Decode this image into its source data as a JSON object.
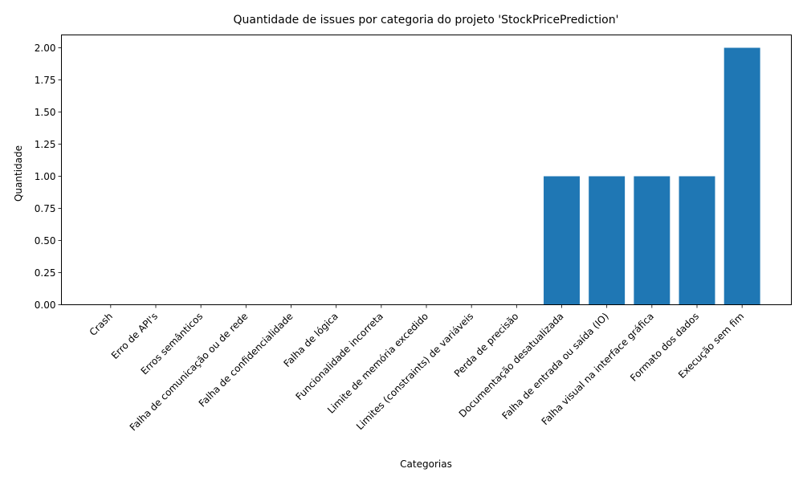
{
  "chart_data": {
    "type": "bar",
    "title": "Quantidade de issues por categoria do projeto 'StockPricePrediction'",
    "xlabel": "Categorias",
    "ylabel": "Quantidade",
    "categories": [
      "Crash",
      "Erro de API's",
      "Erros semânticos",
      "Falha de comunicação ou de rede",
      "Falha de confidencialidade",
      "Falha de lógica",
      "Funcionalidade incorreta",
      "Limite de memória excedido",
      "Limites (constraints) de variáveis",
      "Perda de precisão",
      "Documentação desatualizada",
      "Falha de entrada ou saída (IO)",
      "Falha visual na interface gráfica",
      "Formato dos dados",
      "Execução sem fim"
    ],
    "values": [
      0,
      0,
      0,
      0,
      0,
      0,
      0,
      0,
      0,
      0,
      1,
      1,
      1,
      1,
      2
    ],
    "ylim": [
      0,
      2.1
    ],
    "yticks": [
      "0.00",
      "0.25",
      "0.50",
      "0.75",
      "1.00",
      "1.25",
      "1.50",
      "1.75",
      "2.00"
    ],
    "bar_color": "#1f77b4",
    "grid": false
  }
}
